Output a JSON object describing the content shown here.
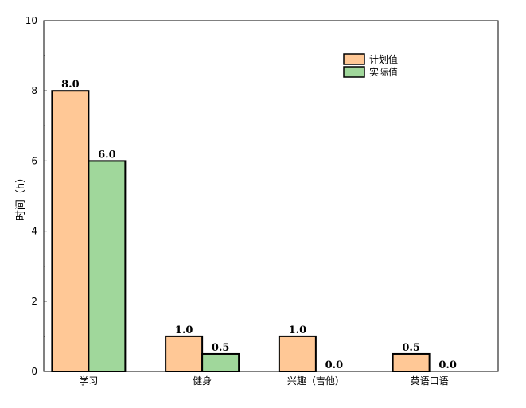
{
  "chart_data": {
    "type": "bar",
    "categories": [
      "学习",
      "健身",
      "兴趣（吉他）",
      "英语口语"
    ],
    "series": [
      {
        "name": "计划值",
        "values": [
          8.0,
          1.0,
          1.0,
          0.5
        ],
        "color": "#FFC896"
      },
      {
        "name": "实际值",
        "values": [
          6.0,
          0.5,
          0.0,
          0.0
        ],
        "color": "#A0D79B"
      }
    ],
    "xlabel": "",
    "ylabel": "时间（h）",
    "ylim": [
      0,
      10
    ],
    "yticks": [
      0,
      2,
      4,
      6,
      8,
      10
    ],
    "grid": false,
    "legend_position": "top-right",
    "data_labels": true
  }
}
